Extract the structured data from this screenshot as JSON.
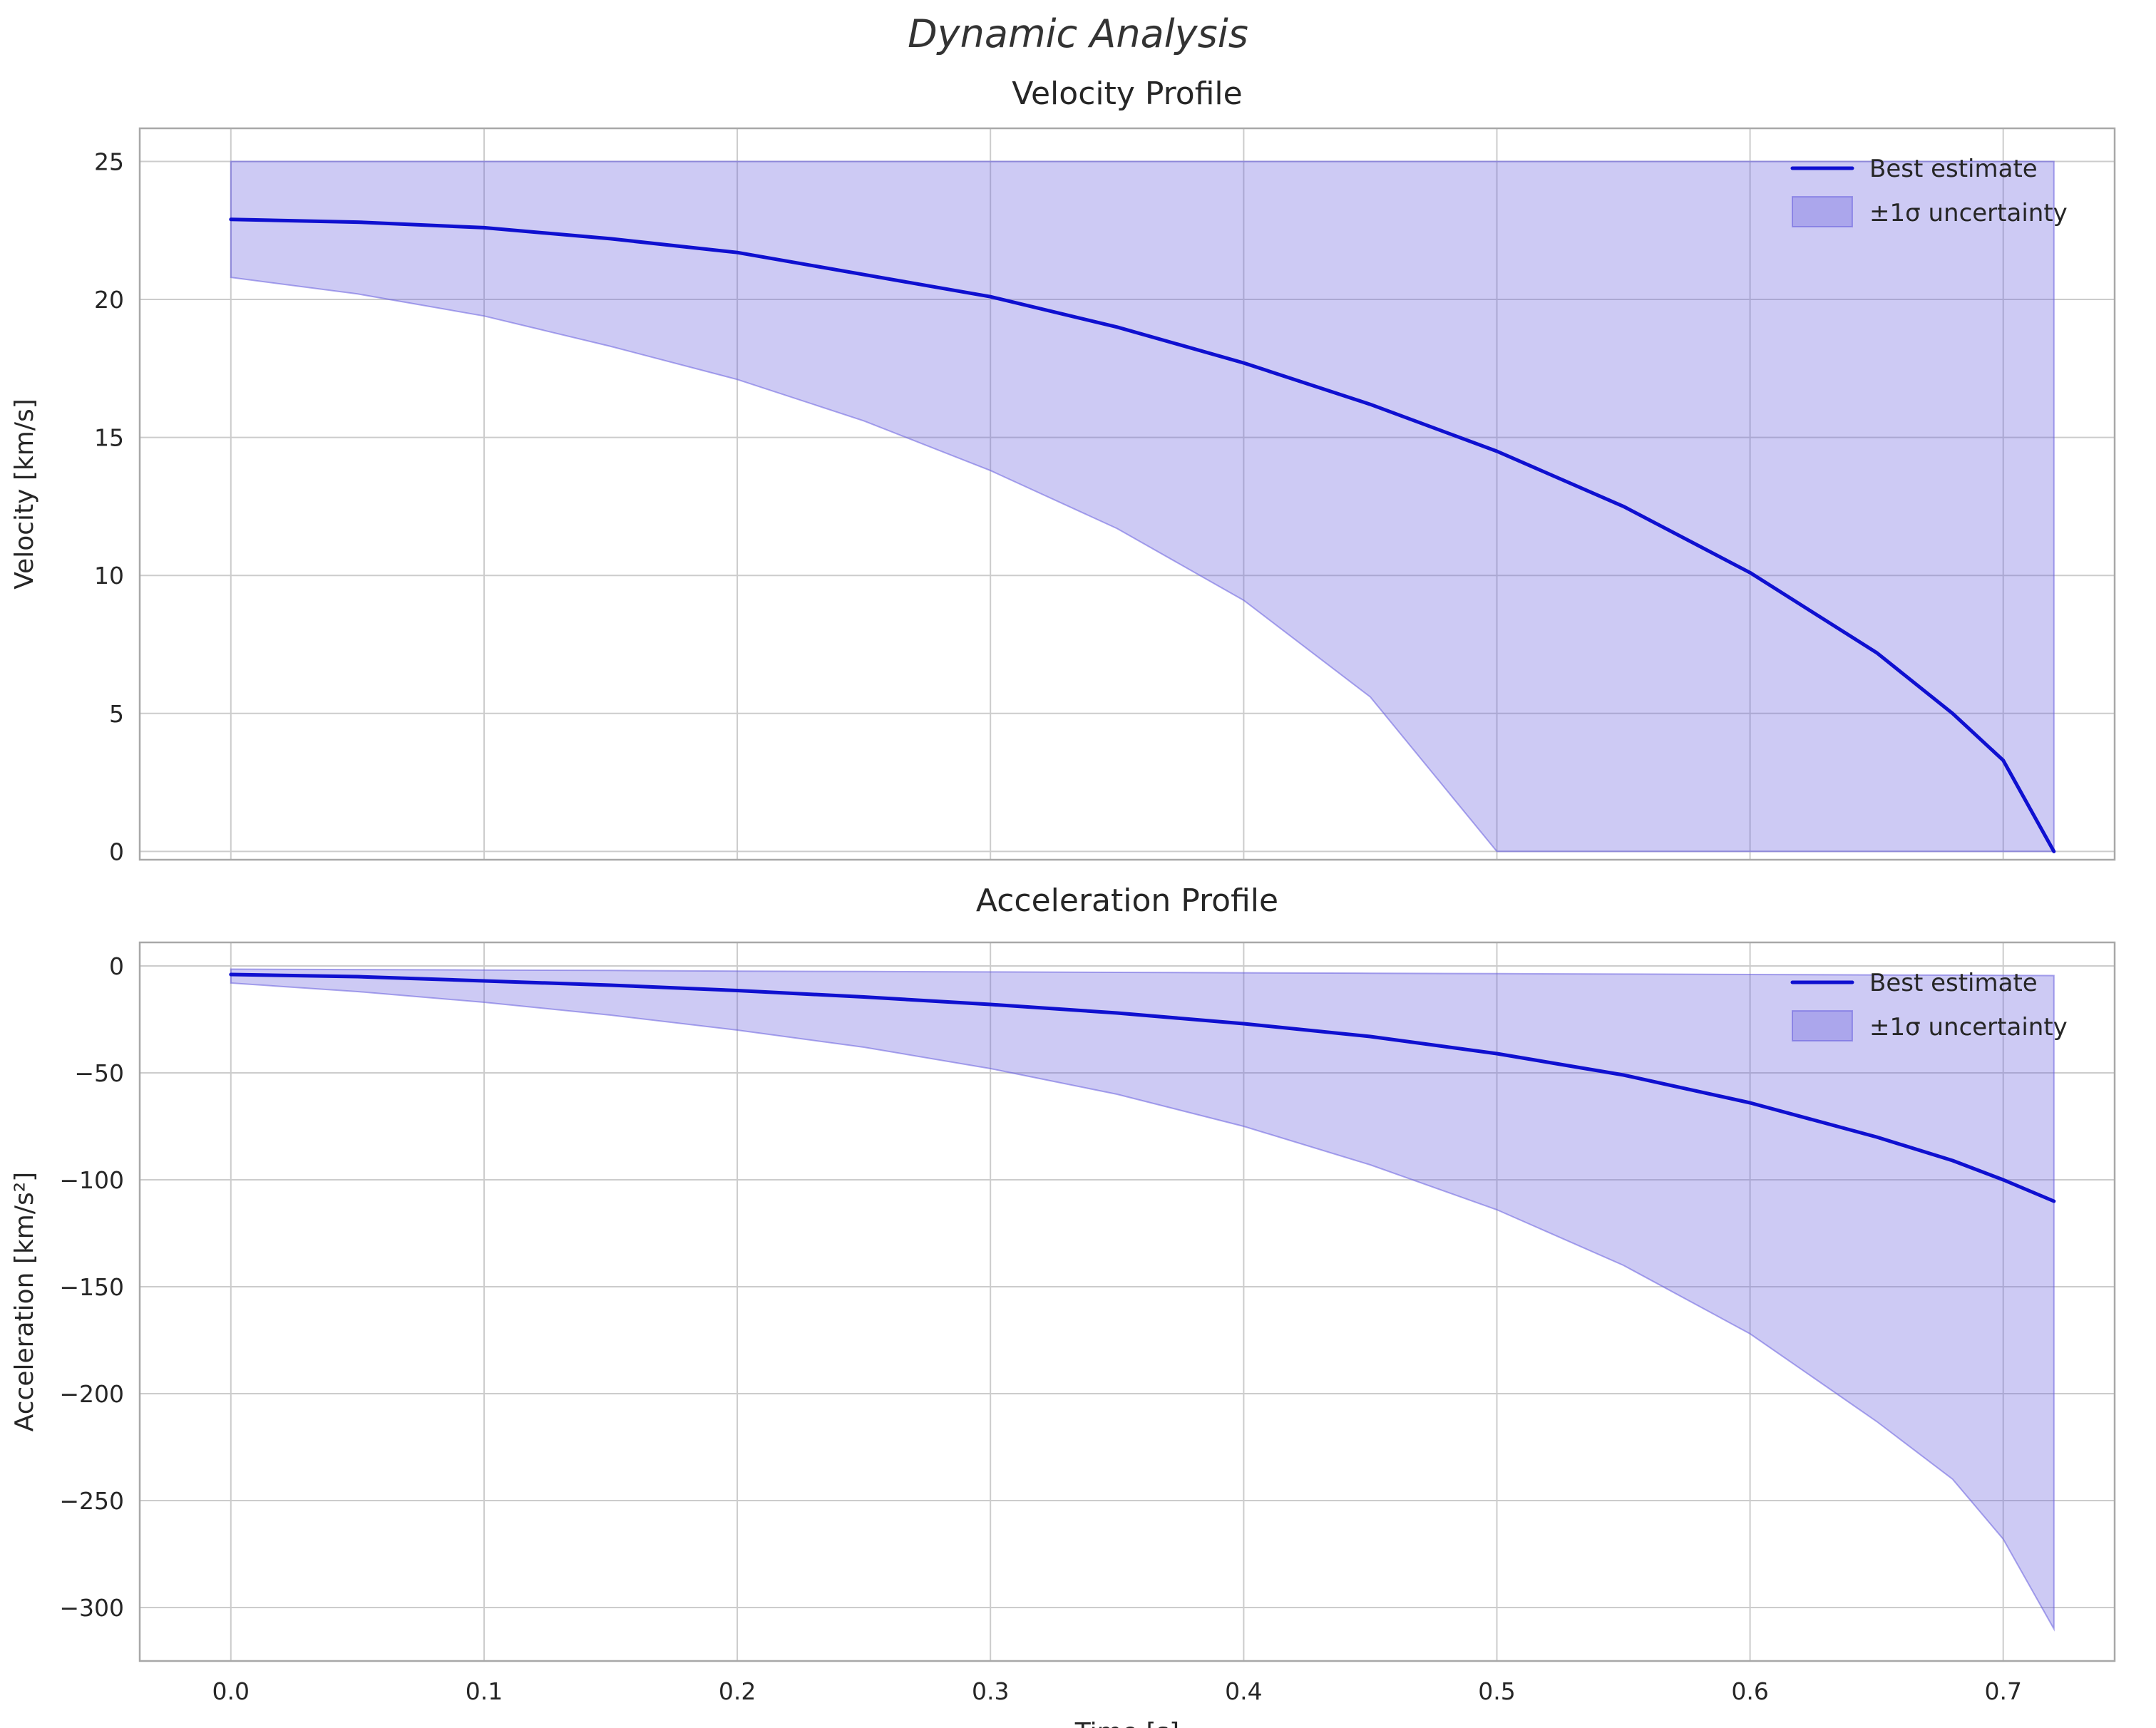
{
  "suptitle": "Dynamic Analysis",
  "colors": {
    "line": "#0f10d0",
    "band_fill": "rgba(103,95,222,0.33)",
    "band_edge": "rgba(103,95,222,0.55)",
    "grid": "#cccccc",
    "spine": "#a8a8a8",
    "text": "#262626"
  },
  "chart_data": [
    {
      "type": "line",
      "title": "Velocity Profile",
      "ylabel": "Velocity [km/s]",
      "xlabel": "",
      "grid": true,
      "legend_position": "upper right",
      "legend": [
        "Best estimate",
        "±1σ uncertainty"
      ],
      "xlim": [
        -0.036,
        0.744
      ],
      "ylim": [
        -0.3,
        26.2
      ],
      "xticks": [
        0.0,
        0.1,
        0.2,
        0.3,
        0.4,
        0.5,
        0.6,
        0.7
      ],
      "xticklabels": [],
      "yticks": [
        0,
        5,
        10,
        15,
        20,
        25
      ],
      "yticklabels": [
        "0",
        "5",
        "10",
        "15",
        "20",
        "25"
      ],
      "x": [
        0.0,
        0.05,
        0.1,
        0.15,
        0.2,
        0.25,
        0.3,
        0.35,
        0.4,
        0.45,
        0.5,
        0.55,
        0.6,
        0.65,
        0.68,
        0.7,
        0.72
      ],
      "line": [
        22.9,
        22.8,
        22.6,
        22.2,
        21.7,
        20.9,
        20.1,
        19.0,
        17.7,
        16.2,
        14.5,
        12.5,
        10.1,
        7.2,
        5.0,
        3.3,
        0.0
      ],
      "band_lower": [
        20.8,
        20.2,
        19.4,
        18.3,
        17.1,
        15.6,
        13.8,
        11.7,
        9.1,
        5.6,
        0.0,
        0.0,
        0.0,
        0.0,
        0.0,
        0.0,
        0.0
      ],
      "band_upper": [
        25,
        25,
        25,
        25,
        25,
        25,
        25,
        25,
        25,
        25,
        25,
        25,
        25,
        25,
        25,
        25,
        25
      ]
    },
    {
      "type": "line",
      "title": "Acceleration Profile",
      "ylabel": "Acceleration [km/s²]",
      "xlabel": "Time [s]",
      "grid": true,
      "legend_position": "upper right",
      "legend": [
        "Best estimate",
        "±1σ uncertainty"
      ],
      "xlim": [
        -0.036,
        0.744
      ],
      "ylim": [
        -325,
        11
      ],
      "xticks": [
        0.0,
        0.1,
        0.2,
        0.3,
        0.4,
        0.5,
        0.6,
        0.7
      ],
      "xticklabels": [
        "0.0",
        "0.1",
        "0.2",
        "0.3",
        "0.4",
        "0.5",
        "0.6",
        "0.7"
      ],
      "yticks": [
        0,
        -50,
        -100,
        -150,
        -200,
        -250,
        -300
      ],
      "yticklabels": [
        "0",
        "−50",
        "−100",
        "−150",
        "−200",
        "−250",
        "−300"
      ],
      "x": [
        0.0,
        0.05,
        0.1,
        0.15,
        0.2,
        0.25,
        0.3,
        0.35,
        0.4,
        0.45,
        0.5,
        0.55,
        0.6,
        0.65,
        0.68,
        0.7,
        0.72
      ],
      "line": [
        -4,
        -5,
        -7,
        -9,
        -11.5,
        -14.5,
        -18,
        -22,
        -27,
        -33,
        -41,
        -51,
        -64,
        -80,
        -91,
        -100,
        -110
      ],
      "band_lower": [
        -8,
        -12,
        -17,
        -23,
        -30,
        -38,
        -48,
        -60,
        -75,
        -93,
        -114,
        -140,
        -172,
        -213,
        -240,
        -268,
        -310
      ],
      "band_upper": [
        -1.5,
        -1.7,
        -1.9,
        -2.1,
        -2.4,
        -2.6,
        -2.8,
        -3.0,
        -3.2,
        -3.4,
        -3.6,
        -3.8,
        -4.0,
        -4.2,
        -4.3,
        -4.4,
        -4.5
      ]
    }
  ]
}
